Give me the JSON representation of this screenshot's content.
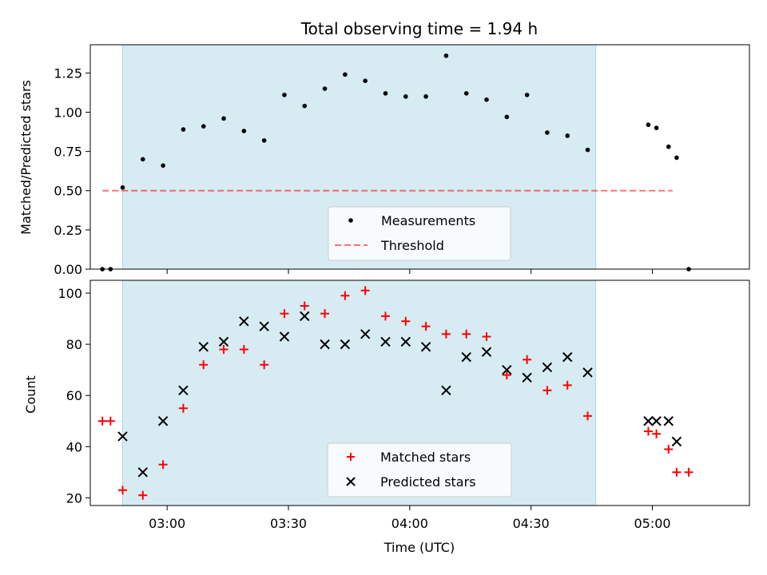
{
  "chart_data": {
    "type": "scatter",
    "title": "Total observing time = 1.94 h",
    "xlabel": "Time (UTC)",
    "x_ticks": [
      "03:00",
      "03:30",
      "04:00",
      "04:30",
      "05:00"
    ],
    "xlim": [
      "02:41",
      "05:24"
    ],
    "shaded_region": [
      "02:49",
      "04:46"
    ],
    "colors": {
      "shade": "#add8e6",
      "measurements": "#000000",
      "threshold": "#ff0000",
      "matched": "#ff0000",
      "predicted": "#000000"
    },
    "top_panel": {
      "ylabel": "Matched/Predicted stars",
      "ylim": [
        0,
        1.43
      ],
      "y_ticks": [
        "0.00",
        "0.25",
        "0.50",
        "0.75",
        "1.00",
        "1.25"
      ],
      "threshold": {
        "name": "Threshold",
        "value": 0.5,
        "x_range": [
          "02:44",
          "05:05"
        ]
      },
      "measurements": {
        "name": "Measurements",
        "points": [
          {
            "x": "02:44",
            "y": 0.0
          },
          {
            "x": "02:46",
            "y": 0.0
          },
          {
            "x": "02:49",
            "y": 0.52
          },
          {
            "x": "02:54",
            "y": 0.7
          },
          {
            "x": "02:59",
            "y": 0.66
          },
          {
            "x": "03:04",
            "y": 0.89
          },
          {
            "x": "03:09",
            "y": 0.91
          },
          {
            "x": "03:14",
            "y": 0.96
          },
          {
            "x": "03:19",
            "y": 0.88
          },
          {
            "x": "03:24",
            "y": 0.82
          },
          {
            "x": "03:29",
            "y": 1.11
          },
          {
            "x": "03:34",
            "y": 1.04
          },
          {
            "x": "03:39",
            "y": 1.15
          },
          {
            "x": "03:44",
            "y": 1.24
          },
          {
            "x": "03:49",
            "y": 1.2
          },
          {
            "x": "03:54",
            "y": 1.12
          },
          {
            "x": "03:59",
            "y": 1.1
          },
          {
            "x": "04:04",
            "y": 1.1
          },
          {
            "x": "04:09",
            "y": 1.36
          },
          {
            "x": "04:14",
            "y": 1.12
          },
          {
            "x": "04:19",
            "y": 1.08
          },
          {
            "x": "04:24",
            "y": 0.97
          },
          {
            "x": "04:29",
            "y": 1.11
          },
          {
            "x": "04:34",
            "y": 0.87
          },
          {
            "x": "04:39",
            "y": 0.85
          },
          {
            "x": "04:44",
            "y": 0.76
          },
          {
            "x": "04:59",
            "y": 0.92
          },
          {
            "x": "05:01",
            "y": 0.9
          },
          {
            "x": "05:04",
            "y": 0.78
          },
          {
            "x": "05:06",
            "y": 0.71
          },
          {
            "x": "05:09",
            "y": 0.0
          }
        ]
      }
    },
    "bottom_panel": {
      "ylabel": "Count",
      "ylim": [
        17,
        105
      ],
      "y_ticks": [
        "20",
        "40",
        "60",
        "80",
        "100"
      ],
      "series": [
        {
          "name": "Matched stars",
          "marker": "+",
          "points": [
            {
              "x": "02:44",
              "y": 50
            },
            {
              "x": "02:46",
              "y": 50
            },
            {
              "x": "02:49",
              "y": 23
            },
            {
              "x": "02:54",
              "y": 21
            },
            {
              "x": "02:59",
              "y": 33
            },
            {
              "x": "03:04",
              "y": 55
            },
            {
              "x": "03:09",
              "y": 72
            },
            {
              "x": "03:14",
              "y": 78
            },
            {
              "x": "03:19",
              "y": 78
            },
            {
              "x": "03:24",
              "y": 72
            },
            {
              "x": "03:29",
              "y": 92
            },
            {
              "x": "03:34",
              "y": 95
            },
            {
              "x": "03:39",
              "y": 92
            },
            {
              "x": "03:44",
              "y": 99
            },
            {
              "x": "03:49",
              "y": 101
            },
            {
              "x": "03:54",
              "y": 91
            },
            {
              "x": "03:59",
              "y": 89
            },
            {
              "x": "04:04",
              "y": 87
            },
            {
              "x": "04:09",
              "y": 84
            },
            {
              "x": "04:14",
              "y": 84
            },
            {
              "x": "04:19",
              "y": 83
            },
            {
              "x": "04:24",
              "y": 68
            },
            {
              "x": "04:29",
              "y": 74
            },
            {
              "x": "04:34",
              "y": 62
            },
            {
              "x": "04:39",
              "y": 64
            },
            {
              "x": "04:44",
              "y": 52
            },
            {
              "x": "04:59",
              "y": 46
            },
            {
              "x": "05:01",
              "y": 45
            },
            {
              "x": "05:04",
              "y": 39
            },
            {
              "x": "05:06",
              "y": 30
            },
            {
              "x": "05:09",
              "y": 30
            }
          ]
        },
        {
          "name": "Predicted stars",
          "marker": "x",
          "points": [
            {
              "x": "02:49",
              "y": 44
            },
            {
              "x": "02:54",
              "y": 30
            },
            {
              "x": "02:59",
              "y": 50
            },
            {
              "x": "03:04",
              "y": 62
            },
            {
              "x": "03:09",
              "y": 79
            },
            {
              "x": "03:14",
              "y": 81
            },
            {
              "x": "03:19",
              "y": 89
            },
            {
              "x": "03:24",
              "y": 87
            },
            {
              "x": "03:29",
              "y": 83
            },
            {
              "x": "03:34",
              "y": 91
            },
            {
              "x": "03:39",
              "y": 80
            },
            {
              "x": "03:44",
              "y": 80
            },
            {
              "x": "03:49",
              "y": 84
            },
            {
              "x": "03:54",
              "y": 81
            },
            {
              "x": "03:59",
              "y": 81
            },
            {
              "x": "04:04",
              "y": 79
            },
            {
              "x": "04:09",
              "y": 62
            },
            {
              "x": "04:14",
              "y": 75
            },
            {
              "x": "04:19",
              "y": 77
            },
            {
              "x": "04:24",
              "y": 70
            },
            {
              "x": "04:29",
              "y": 67
            },
            {
              "x": "04:34",
              "y": 71
            },
            {
              "x": "04:39",
              "y": 75
            },
            {
              "x": "04:44",
              "y": 69
            },
            {
              "x": "04:59",
              "y": 50
            },
            {
              "x": "05:01",
              "y": 50
            },
            {
              "x": "05:04",
              "y": 50
            },
            {
              "x": "05:06",
              "y": 42
            }
          ]
        }
      ]
    }
  }
}
